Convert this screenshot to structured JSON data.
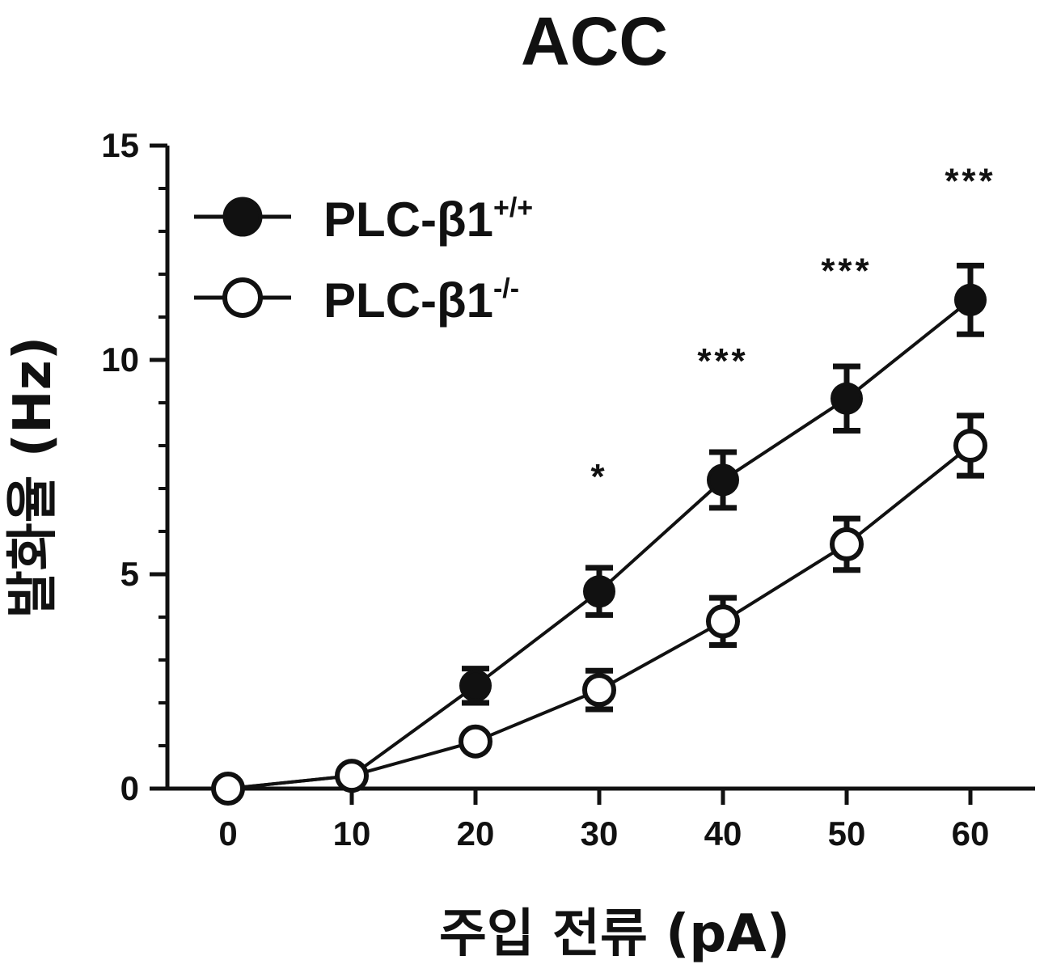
{
  "chart_data": {
    "type": "line",
    "title": "ACC",
    "xlabel": "주입 전류 (pA)",
    "ylabel": "발화율 (Hz)",
    "x": [
      0,
      10,
      20,
      30,
      40,
      50,
      60
    ],
    "xlim": [
      0,
      60
    ],
    "ylim": [
      0,
      15
    ],
    "xticks": [
      "0",
      "10",
      "20",
      "30",
      "40",
      "50",
      "60"
    ],
    "yticks": [
      "0",
      "5",
      "10",
      "15"
    ],
    "grid": false,
    "legend_position": "top-left",
    "series": [
      {
        "name": "PLC-β1+/+",
        "label_main": "PLC-β1",
        "label_sup": "+/+",
        "marker": "filled-circle",
        "color": "#111111",
        "values": [
          0.0,
          0.3,
          2.4,
          4.6,
          7.2,
          9.1,
          11.4
        ],
        "errors": [
          0.05,
          0.15,
          0.4,
          0.55,
          0.65,
          0.75,
          0.8
        ]
      },
      {
        "name": "PLC-β1-/-",
        "label_main": "PLC-β1",
        "label_sup": "-/-",
        "marker": "open-circle",
        "color": "#111111",
        "values": [
          0.0,
          0.3,
          1.1,
          2.3,
          3.9,
          5.7,
          8.0
        ],
        "errors": [
          0.05,
          0.1,
          0.15,
          0.45,
          0.55,
          0.6,
          0.7
        ]
      }
    ],
    "annotations": [
      {
        "x": 30,
        "text": "*",
        "y": 7.0
      },
      {
        "x": 40,
        "text": "***",
        "y": 9.7
      },
      {
        "x": 50,
        "text": "***",
        "y": 11.8
      },
      {
        "x": 60,
        "text": "***",
        "y": 13.9
      }
    ]
  }
}
